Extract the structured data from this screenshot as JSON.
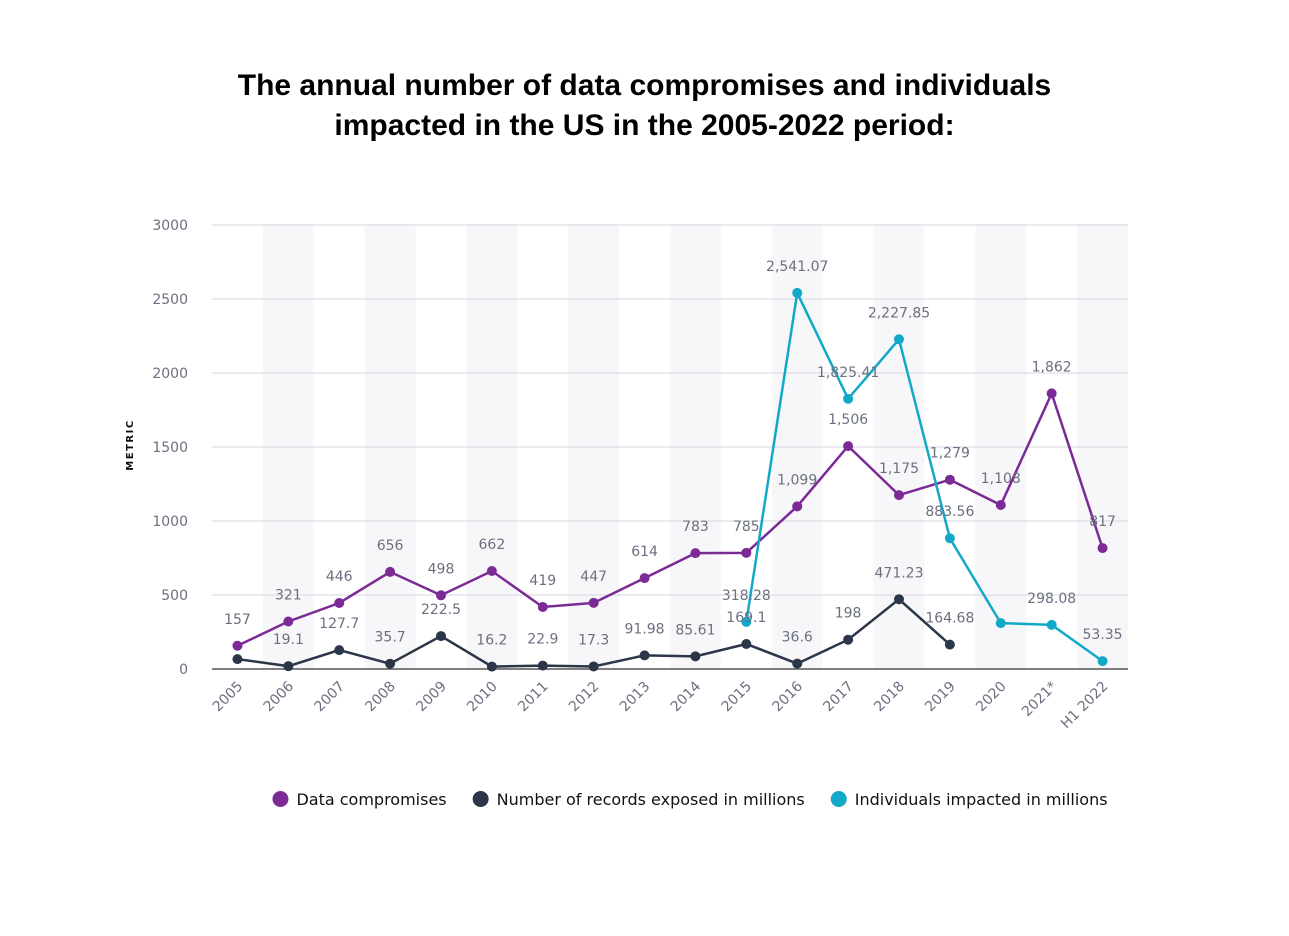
{
  "chart_data": {
    "type": "line",
    "title": "The annual number of data compromises and individuals impacted in the US in the 2005-2022 period:",
    "y_label": "METRIC",
    "categories": [
      "2005",
      "2006",
      "2007",
      "2008",
      "2009",
      "2010",
      "2011",
      "2012",
      "2013",
      "2014",
      "2015",
      "2016",
      "2017",
      "2018",
      "2019",
      "2020",
      "2021*",
      "H1 2022"
    ],
    "series": [
      {
        "name": "Data compromises",
        "color": "#7b2a96",
        "values": [
          157,
          321,
          446,
          656,
          498,
          662,
          419,
          447,
          614,
          783,
          785,
          1099,
          1506,
          1175,
          1279,
          1108,
          1862,
          817
        ],
        "value_labels": [
          "157",
          "321",
          "446",
          "656",
          "498",
          "662",
          "419",
          "447",
          "614",
          "783",
          "785",
          "1,099",
          "1,506",
          "1,175",
          "1,279",
          "1,108",
          "1,862",
          "817"
        ]
      },
      {
        "name": "Number of records exposed in millions",
        "color": "#2b3648",
        "values": [
          66.9,
          19.1,
          127.7,
          35.7,
          222.5,
          16.2,
          22.9,
          17.3,
          91.98,
          85.61,
          169.1,
          36.6,
          198,
          471.23,
          164.68,
          null,
          null,
          null
        ],
        "value_labels": [
          null,
          "19.1",
          "127.7",
          "35.7",
          "222.5",
          "16.2",
          "22.9",
          "17.3",
          "91.98",
          "85.61",
          "169.1",
          "36.6",
          "198",
          "471.23",
          "164.68",
          null,
          null,
          null
        ]
      },
      {
        "name": "Individuals impacted in millions",
        "color": "#12a9c9",
        "values": [
          null,
          null,
          null,
          null,
          null,
          null,
          null,
          null,
          null,
          null,
          318.28,
          2541.07,
          1825.41,
          2227.85,
          883.56,
          310,
          298.08,
          53.35
        ],
        "value_labels": [
          null,
          null,
          null,
          null,
          null,
          null,
          null,
          null,
          null,
          null,
          "318.28",
          "2,541.07",
          "1,825.41",
          "2,227.85",
          "883.56",
          null,
          "298.08",
          "53.35"
        ]
      }
    ],
    "ylim": [
      0,
      3000
    ],
    "yticks": [
      0,
      500,
      1000,
      1500,
      2000,
      2500,
      3000
    ],
    "grid": true
  }
}
